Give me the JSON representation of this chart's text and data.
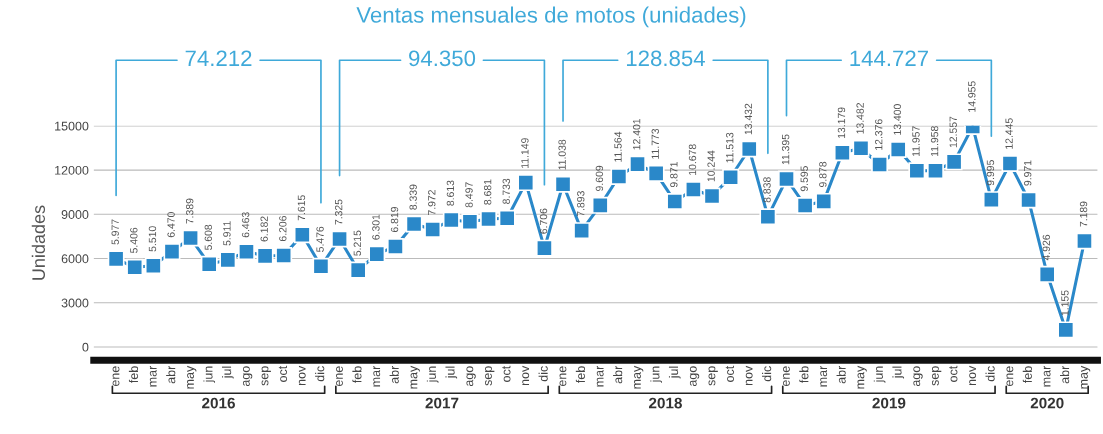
{
  "chart_data": {
    "type": "line",
    "title": "Ventas mensuales de motos (unidades)",
    "ylabel": "Unidades",
    "categories": [
      "ene",
      "feb",
      "mar",
      "abr",
      "may",
      "jun",
      "jul",
      "ago",
      "sep",
      "oct",
      "nov",
      "dic",
      "ene",
      "feb",
      "mar",
      "abr",
      "may",
      "jun",
      "jul",
      "ago",
      "sep",
      "oct",
      "nov",
      "dic",
      "ene",
      "feb",
      "mar",
      "abr",
      "may",
      "jun",
      "jul",
      "ago",
      "sep",
      "oct",
      "nov",
      "dic",
      "ene",
      "feb",
      "mar",
      "abr",
      "may",
      "jun",
      "jul",
      "ago",
      "sep",
      "oct",
      "nov",
      "dic",
      "ene",
      "feb",
      "mar",
      "abr",
      "may"
    ],
    "series": [
      {
        "color": "#2a88c9",
        "values": [
          5977,
          5406,
          5510,
          6470,
          7389,
          5608,
          5911,
          6463,
          6182,
          6206,
          7615,
          5476,
          7325,
          5215,
          6301,
          6819,
          8339,
          7972,
          8613,
          8497,
          8681,
          8733,
          11149,
          6706,
          11038,
          7893,
          9609,
          11564,
          12401,
          11773,
          9871,
          10678,
          10244,
          11513,
          13432,
          8838,
          11395,
          9595,
          9878,
          13179,
          13482,
          12376,
          13400,
          11957,
          11958,
          12557,
          14955,
          9995,
          12445,
          9971,
          4926,
          1155,
          7189
        ],
        "value_labels": [
          "5.977",
          "5.406",
          "5.510",
          "6.470",
          "7.389",
          "5.608",
          "5.911",
          "6.463",
          "6.182",
          "6.206",
          "7.615",
          "5.476",
          "7.325",
          "5.215",
          "6.301",
          "6.819",
          "8.339",
          "7.972",
          "8.613",
          "8.497",
          "8.681",
          "8.733",
          "11.149",
          "6.706",
          "11.038",
          "7.893",
          "9.609",
          "11.564",
          "12.401",
          "11.773",
          "9.871",
          "10.678",
          "10.244",
          "11.513",
          "13.432",
          "8.838",
          "11.395",
          "9.595",
          "9.878",
          "13.179",
          "13.482",
          "12.376",
          "13.400",
          "11.957",
          "11.958",
          "12.557",
          "14.955",
          "9.995",
          "12.445",
          "9.971",
          "4.926",
          "1.155",
          "7.189"
        ]
      }
    ],
    "ylim": [
      -900,
      15000
    ],
    "yticks": [
      0,
      3000,
      6000,
      9000,
      12000,
      15000
    ],
    "grid": "y",
    "marker": "square",
    "line_style": "solid",
    "annotations": [
      "74.212",
      "94.350",
      "128.854",
      "144.727",
      "2016",
      "2017",
      "2018",
      "2019",
      "2020"
    ]
  }
}
